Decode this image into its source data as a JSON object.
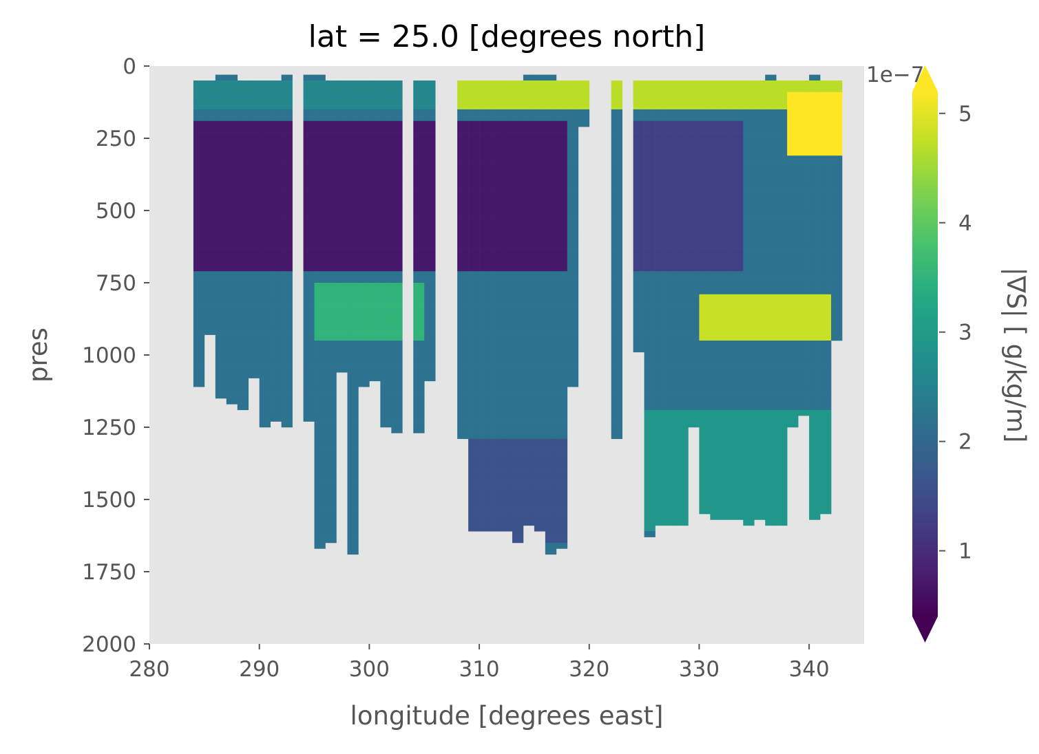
{
  "chart_data": {
    "type": "heatmap",
    "title": "lat = 25.0 [degrees north]",
    "xlabel": "longitude [degrees east]",
    "ylabel": "pres",
    "xlim": [
      280,
      345
    ],
    "ylim": [
      0,
      2000
    ],
    "y_inverted": true,
    "xticks": [
      "280",
      "290",
      "300",
      "310",
      "320",
      "330",
      "340"
    ],
    "yticks": [
      "0",
      "250",
      "500",
      "750",
      "1000",
      "1250",
      "1500",
      "1750",
      "2000"
    ],
    "colorbar": {
      "label": "|∇S| [ g/kg/m]",
      "scale_label": "1e−7",
      "range": [
        0.4,
        5.2
      ],
      "extend": "both",
      "ticks": [
        "1",
        "2",
        "3",
        "4",
        "5"
      ],
      "colormap": "viridis"
    },
    "background_color": "#e5e5e5",
    "grid": false,
    "profiles": [
      {
        "lon": 284.5,
        "max_pres": 1110
      },
      {
        "lon": 285.5,
        "max_pres": 930
      },
      {
        "lon": 286.5,
        "max_pres": 1150
      },
      {
        "lon": 287.5,
        "max_pres": 1170
      },
      {
        "lon": 288.5,
        "max_pres": 1190
      },
      {
        "lon": 289.5,
        "max_pres": 1080
      },
      {
        "lon": 290.5,
        "max_pres": 1250
      },
      {
        "lon": 291.5,
        "max_pres": 1230
      },
      {
        "lon": 292.5,
        "max_pres": 1250
      },
      {
        "lon": 294.5,
        "max_pres": 1230
      },
      {
        "lon": 295.5,
        "max_pres": 1670
      },
      {
        "lon": 296.5,
        "max_pres": 1650
      },
      {
        "lon": 297.5,
        "max_pres": 1060
      },
      {
        "lon": 298.5,
        "max_pres": 1690
      },
      {
        "lon": 299.5,
        "max_pres": 1110
      },
      {
        "lon": 300.5,
        "max_pres": 1090
      },
      {
        "lon": 301.5,
        "max_pres": 1250
      },
      {
        "lon": 302.5,
        "max_pres": 1270
      },
      {
        "lon": 304.5,
        "max_pres": 1270
      },
      {
        "lon": 305.5,
        "max_pres": 1090
      },
      {
        "lon": 308.5,
        "max_pres": 1290
      },
      {
        "lon": 309.5,
        "max_pres": 1610
      },
      {
        "lon": 310.5,
        "max_pres": 1610
      },
      {
        "lon": 311.5,
        "max_pres": 1610
      },
      {
        "lon": 312.5,
        "max_pres": 1610
      },
      {
        "lon": 313.5,
        "max_pres": 1650
      },
      {
        "lon": 314.5,
        "max_pres": 1590
      },
      {
        "lon": 315.5,
        "max_pres": 1610
      },
      {
        "lon": 316.5,
        "max_pres": 1690
      },
      {
        "lon": 317.5,
        "max_pres": 1670
      },
      {
        "lon": 318.5,
        "max_pres": 1110
      },
      {
        "lon": 319.5,
        "max_pres": 210
      },
      {
        "lon": 322.5,
        "max_pres": 1290
      },
      {
        "lon": 324.5,
        "max_pres": 990
      },
      {
        "lon": 325.5,
        "max_pres": 1630
      },
      {
        "lon": 326.5,
        "max_pres": 1590
      },
      {
        "lon": 327.5,
        "max_pres": 1590
      },
      {
        "lon": 328.5,
        "max_pres": 1590
      },
      {
        "lon": 329.5,
        "max_pres": 1250
      },
      {
        "lon": 330.5,
        "max_pres": 1550
      },
      {
        "lon": 331.5,
        "max_pres": 1570
      },
      {
        "lon": 332.5,
        "max_pres": 1570
      },
      {
        "lon": 333.5,
        "max_pres": 1570
      },
      {
        "lon": 334.5,
        "max_pres": 1590
      },
      {
        "lon": 335.5,
        "max_pres": 1570
      },
      {
        "lon": 336.5,
        "max_pres": 1590
      },
      {
        "lon": 337.5,
        "max_pres": 1590
      },
      {
        "lon": 338.5,
        "max_pres": 1250
      },
      {
        "lon": 339.5,
        "max_pres": 1210
      },
      {
        "lon": 340.5,
        "max_pres": 1570
      },
      {
        "lon": 341.5,
        "max_pres": 1550
      },
      {
        "lon": 342.5,
        "max_pres": 950
      }
    ],
    "profile_tops": [
      {
        "lon": 286.5,
        "min_pres": 30
      },
      {
        "lon": 287.5,
        "min_pres": 30
      },
      {
        "lon": 292.5,
        "min_pres": 30
      },
      {
        "lon": 294.5,
        "min_pres": 30
      },
      {
        "lon": 295.5,
        "min_pres": 30
      },
      {
        "lon": 314.5,
        "min_pres": 30
      },
      {
        "lon": 315.5,
        "min_pres": 30
      },
      {
        "lon": 316.5,
        "min_pres": 30
      },
      {
        "lon": 336.5,
        "min_pres": 30
      },
      {
        "lon": 340.5,
        "min_pres": 30
      }
    ],
    "gradient_magnitude_bands": [
      {
        "pres_range": [
          50,
          150
        ],
        "lon_range": [
          284,
          307
        ],
        "value": 2.6
      },
      {
        "pres_range": [
          50,
          150
        ],
        "lon_range": [
          308,
          343
        ],
        "value": 4.7
      },
      {
        "pres_range": [
          200,
          700
        ],
        "lon_range": [
          284,
          318
        ],
        "value": 0.7
      },
      {
        "pres_range": [
          200,
          700
        ],
        "lon_range": [
          324,
          334
        ],
        "value": 1.3
      },
      {
        "pres_range": [
          100,
          300
        ],
        "lon_range": [
          338,
          343
        ],
        "value": 5.2
      },
      {
        "pres_range": [
          750,
          950
        ],
        "lon_range": [
          295,
          305
        ],
        "value": 3.5
      },
      {
        "pres_range": [
          800,
          950
        ],
        "lon_range": [
          330,
          342
        ],
        "value": 4.8
      },
      {
        "pres_range": [
          1300,
          1650
        ],
        "lon_range": [
          309,
          318
        ],
        "value": 1.6
      },
      {
        "pres_range": [
          1200,
          1600
        ],
        "lon_range": [
          325,
          342
        ],
        "value": 2.9
      }
    ]
  }
}
